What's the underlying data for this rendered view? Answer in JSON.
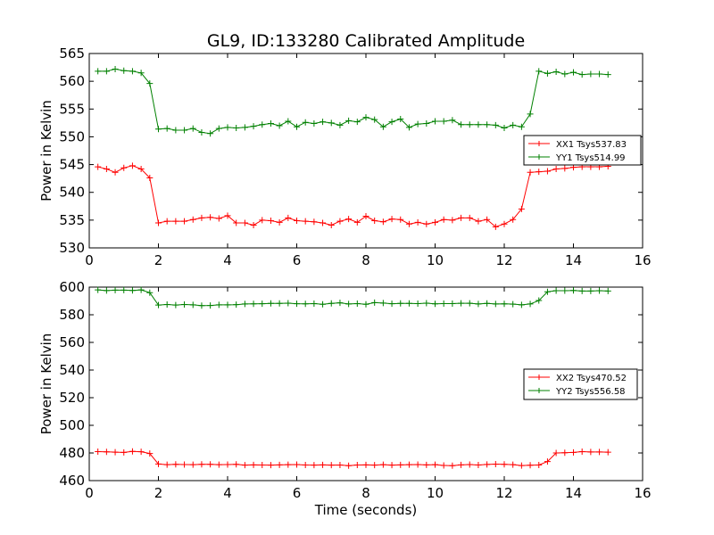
{
  "title": "GL9, ID:133280 Calibrated Amplitude",
  "colors": {
    "red_series": "#ff0000",
    "green_series": "#008000",
    "axes": "#000000",
    "background": "#ffffff"
  },
  "chart_data": [
    {
      "type": "line",
      "title": "GL9, ID:133280 Calibrated Amplitude",
      "xlabel": "",
      "ylabel": "Power in Kelvin",
      "xlim": [
        0,
        16
      ],
      "ylim": [
        530,
        565
      ],
      "xticks": [
        0,
        2,
        4,
        6,
        8,
        10,
        12,
        14,
        16
      ],
      "yticks": [
        530,
        535,
        540,
        545,
        550,
        555,
        560,
        565
      ],
      "grid": false,
      "legend_position": "center-right",
      "x": [
        0.25,
        0.5,
        0.75,
        1.0,
        1.25,
        1.5,
        1.75,
        2.0,
        2.25,
        2.5,
        2.75,
        3.0,
        3.25,
        3.5,
        3.75,
        4.0,
        4.25,
        4.5,
        4.75,
        5.0,
        5.25,
        5.5,
        5.75,
        6.0,
        6.25,
        6.5,
        6.75,
        7.0,
        7.25,
        7.5,
        7.75,
        8.0,
        8.25,
        8.5,
        8.75,
        9.0,
        9.25,
        9.5,
        9.75,
        10.0,
        10.25,
        10.5,
        10.75,
        11.0,
        11.25,
        11.5,
        11.75,
        12.0,
        12.25,
        12.5,
        12.75,
        13.0,
        13.25,
        13.5,
        13.75,
        14.0,
        14.25,
        14.5,
        14.75,
        15.0
      ],
      "series": [
        {
          "name": "XX1 Tsys537.83",
          "color": "#ff0000",
          "values": [
            544.6,
            544.2,
            543.6,
            544.4,
            544.8,
            544.2,
            542.6,
            534.5,
            534.8,
            534.8,
            534.8,
            535.1,
            535.4,
            535.5,
            535.3,
            535.8,
            534.5,
            534.5,
            534.1,
            535.0,
            534.9,
            534.6,
            535.4,
            534.9,
            534.8,
            534.7,
            534.5,
            534.1,
            534.8,
            535.2,
            534.6,
            535.7,
            534.9,
            534.7,
            535.2,
            535.1,
            534.3,
            534.6,
            534.3,
            534.6,
            535.1,
            535.0,
            535.4,
            535.4,
            534.8,
            535.1,
            533.8,
            534.3,
            535.1,
            537.0,
            543.6,
            543.7,
            543.8,
            544.2,
            544.3,
            544.5,
            544.6,
            544.6,
            544.6,
            544.7
          ]
        },
        {
          "name": "YY1 Tsys514.99",
          "color": "#008000",
          "values": [
            561.8,
            561.8,
            562.2,
            561.9,
            561.8,
            561.5,
            559.6,
            551.4,
            551.5,
            551.2,
            551.2,
            551.5,
            550.8,
            550.6,
            551.5,
            551.7,
            551.6,
            551.7,
            551.9,
            552.2,
            552.4,
            552.0,
            552.8,
            551.8,
            552.6,
            552.4,
            552.7,
            552.5,
            552.1,
            552.9,
            552.7,
            553.5,
            553.1,
            551.8,
            552.7,
            553.2,
            551.7,
            552.3,
            552.4,
            552.8,
            552.8,
            553.0,
            552.2,
            552.2,
            552.2,
            552.2,
            552.1,
            551.6,
            552.1,
            551.8,
            554.1,
            561.8,
            561.4,
            561.7,
            561.3,
            561.6,
            561.2,
            561.3,
            561.3,
            561.2
          ]
        }
      ]
    },
    {
      "type": "line",
      "title": "",
      "xlabel": "Time (seconds)",
      "ylabel": "Power in Kelvin",
      "xlim": [
        0,
        16
      ],
      "ylim": [
        460,
        600
      ],
      "xticks": [
        0,
        2,
        4,
        6,
        8,
        10,
        12,
        14,
        16
      ],
      "yticks": [
        460,
        480,
        500,
        520,
        540,
        560,
        580,
        600
      ],
      "grid": false,
      "legend_position": "center-right",
      "x": [
        0.25,
        0.5,
        0.75,
        1.0,
        1.25,
        1.5,
        1.75,
        2.0,
        2.25,
        2.5,
        2.75,
        3.0,
        3.25,
        3.5,
        3.75,
        4.0,
        4.25,
        4.5,
        4.75,
        5.0,
        5.25,
        5.5,
        5.75,
        6.0,
        6.25,
        6.5,
        6.75,
        7.0,
        7.25,
        7.5,
        7.75,
        8.0,
        8.25,
        8.5,
        8.75,
        9.0,
        9.25,
        9.5,
        9.75,
        10.0,
        10.25,
        10.5,
        10.75,
        11.0,
        11.25,
        11.5,
        11.75,
        12.0,
        12.25,
        12.5,
        12.75,
        13.0,
        13.25,
        13.5,
        13.75,
        14.0,
        14.25,
        14.5,
        14.75,
        15.0
      ],
      "series": [
        {
          "name": "XX2 Tsys470.52",
          "color": "#ff0000",
          "values": [
            481.0,
            480.8,
            480.6,
            480.4,
            481.1,
            480.9,
            479.6,
            472.0,
            471.5,
            471.8,
            471.6,
            471.5,
            471.8,
            471.8,
            471.5,
            471.6,
            471.8,
            471.2,
            471.4,
            471.3,
            471.2,
            471.4,
            471.5,
            471.6,
            471.3,
            471.2,
            471.4,
            471.2,
            471.3,
            470.8,
            471.3,
            471.4,
            471.2,
            471.5,
            471.2,
            471.4,
            471.5,
            471.6,
            471.4,
            471.5,
            471.0,
            470.8,
            471.4,
            471.6,
            471.3,
            471.7,
            471.9,
            471.8,
            471.5,
            470.9,
            471.1,
            471.3,
            473.8,
            480.0,
            480.2,
            480.4,
            481.0,
            480.7,
            480.7,
            480.6
          ]
        },
        {
          "name": "YY2 Tsys556.58",
          "color": "#008000",
          "values": [
            598.0,
            597.5,
            597.8,
            597.8,
            597.6,
            598.0,
            596.0,
            587.0,
            587.4,
            587.0,
            587.4,
            587.2,
            586.6,
            586.7,
            587.2,
            587.2,
            587.3,
            587.8,
            587.9,
            588.0,
            588.2,
            588.2,
            588.4,
            588.0,
            587.9,
            588.1,
            587.6,
            588.2,
            588.6,
            587.8,
            588.1,
            587.6,
            588.8,
            588.5,
            588.0,
            588.2,
            588.2,
            588.1,
            588.4,
            587.9,
            588.1,
            588.1,
            588.3,
            588.3,
            587.8,
            588.2,
            587.8,
            587.9,
            587.7,
            587.2,
            587.8,
            590.3,
            596.6,
            597.4,
            597.4,
            597.6,
            597.2,
            597.2,
            597.4,
            597.2
          ]
        }
      ]
    }
  ]
}
